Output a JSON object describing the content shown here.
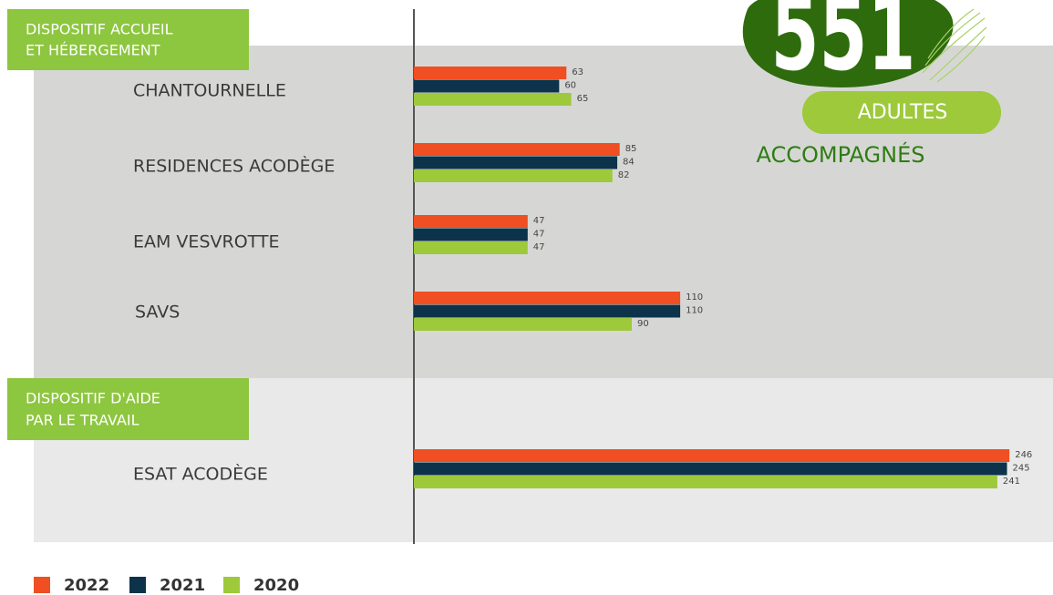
{
  "chart_data": {
    "type": "bar",
    "orientation": "horizontal",
    "groups": [
      [
        "DISPOSITIF ACCUEIL",
        "ET HÉBERGEMENT"
      ],
      [
        "DISPOSITIF D'AIDE",
        "PAR LE TRAVAIL"
      ]
    ],
    "categories": [
      "CHANTOURNELLE",
      "RESIDENCES ACODÈGE",
      "EAM VESVROTTE",
      "SAVS",
      "ESAT ACODÈGE"
    ],
    "series": [
      {
        "name": "2022",
        "color": "#f04e23",
        "values": [
          63,
          85,
          47,
          110,
          246
        ]
      },
      {
        "name": "2021",
        "color": "#0c3349",
        "values": [
          60,
          84,
          47,
          110,
          245
        ]
      },
      {
        "name": "2020",
        "color": "#9dc93b",
        "values": [
          65,
          82,
          47,
          90,
          241
        ]
      }
    ],
    "xlim": [
      0,
      264
    ],
    "total": 551,
    "total_label": "ADULTES",
    "total_caption": "ACCOMPAGNÉS"
  }
}
